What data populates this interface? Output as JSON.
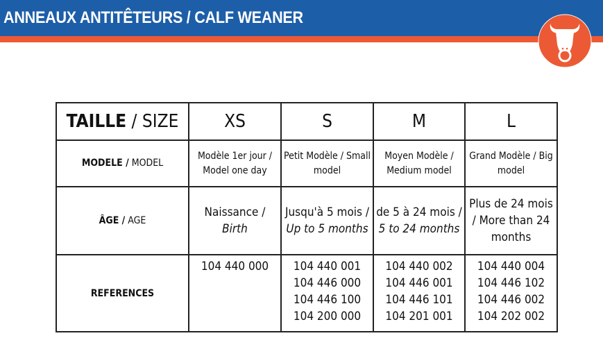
{
  "header": {
    "title": "ANNEAUX ANTITÊTEURS / CALF WEANER",
    "logo_icon": "bull-head-icon",
    "colors": {
      "blue": "#1d5ea8",
      "orange": "#ec5a35"
    }
  },
  "table": {
    "size_row": {
      "label_fr": "TAILLE",
      "label_en": "/ SIZE",
      "values": [
        "XS",
        "S",
        "M",
        "L"
      ]
    },
    "model_row": {
      "label_fr": "MODELE /",
      "label_en": "MODEL",
      "values": [
        "Modèle 1er jour / Model one day",
        "Petit Modèle / Small model",
        "Moyen Modèle / Medium model",
        "Grand Modèle / Big model"
      ]
    },
    "age_row": {
      "label_fr": "ÂGE /",
      "label_en": "AGE",
      "values": [
        {
          "fr": "Naissance /",
          "en": "Birth"
        },
        {
          "fr": "Jusqu'à 5 mois /",
          "en": "Up to 5 months"
        },
        {
          "fr": "de 5 à 24 mois /",
          "en": "5 to 24 months"
        },
        {
          "fr": "Plus de 24 mois / More than 24 months",
          "en": ""
        }
      ]
    },
    "references_row": {
      "label": "REFERENCES",
      "values": [
        [
          "104 440 000"
        ],
        [
          "104 440 001",
          "104 446 000",
          "104 446 100",
          "104 200 000"
        ],
        [
          "104 440 002",
          "104 446 001",
          "104 446 101",
          "104 201 001"
        ],
        [
          "104 440 004",
          "104 446 102",
          "104 446 002",
          "104 202 002"
        ]
      ]
    }
  }
}
